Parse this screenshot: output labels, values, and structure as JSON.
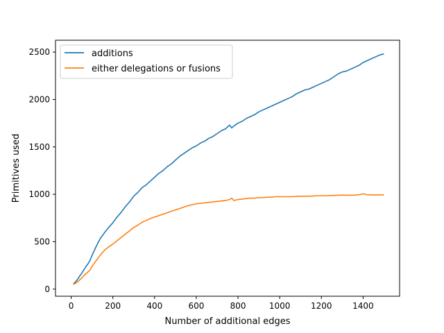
{
  "chart_data": {
    "type": "line",
    "title": "",
    "xlabel": "Number of additional edges",
    "ylabel": "Primitives used",
    "xlim": [
      -75,
      1575
    ],
    "ylim": [
      -75,
      2625
    ],
    "xticks": [
      0,
      200,
      400,
      600,
      800,
      1000,
      1200,
      1400
    ],
    "xtick_labels": [
      "0",
      "200",
      "400",
      "600",
      "800",
      "1000",
      "1200",
      "1400"
    ],
    "yticks": [
      0,
      500,
      1000,
      1500,
      2000,
      2500
    ],
    "ytick_labels": [
      "0",
      "500",
      "1000",
      "1500",
      "2000",
      "2500"
    ],
    "grid": false,
    "legend_position": "upper-left",
    "series": [
      {
        "name": "additions",
        "color": "#1f77b4",
        "x": [
          10,
          20,
          30,
          40,
          50,
          60,
          70,
          80,
          90,
          100,
          120,
          140,
          160,
          180,
          200,
          220,
          240,
          260,
          280,
          300,
          320,
          340,
          360,
          380,
          400,
          420,
          440,
          460,
          480,
          500,
          520,
          540,
          560,
          580,
          600,
          620,
          640,
          660,
          680,
          700,
          720,
          740,
          760,
          770,
          780,
          800,
          820,
          840,
          860,
          880,
          900,
          920,
          940,
          960,
          980,
          1000,
          1020,
          1040,
          1060,
          1080,
          1100,
          1120,
          1140,
          1160,
          1180,
          1200,
          1220,
          1240,
          1260,
          1280,
          1300,
          1320,
          1340,
          1360,
          1380,
          1400,
          1420,
          1440,
          1460,
          1480,
          1500
        ],
        "values": [
          50,
          75,
          100,
          135,
          165,
          200,
          235,
          265,
          300,
          355,
          450,
          535,
          595,
          650,
          700,
          760,
          810,
          870,
          920,
          980,
          1020,
          1070,
          1100,
          1140,
          1180,
          1220,
          1250,
          1290,
          1320,
          1360,
          1400,
          1430,
          1460,
          1490,
          1510,
          1540,
          1560,
          1590,
          1610,
          1640,
          1670,
          1690,
          1730,
          1700,
          1720,
          1750,
          1770,
          1800,
          1820,
          1840,
          1870,
          1890,
          1910,
          1930,
          1950,
          1970,
          1990,
          2010,
          2030,
          2060,
          2080,
          2100,
          2110,
          2130,
          2150,
          2170,
          2190,
          2210,
          2240,
          2270,
          2290,
          2300,
          2320,
          2340,
          2360,
          2390,
          2410,
          2430,
          2450,
          2470,
          2480
        ]
      },
      {
        "name": "either delegations or fusions",
        "color": "#ff7f0e",
        "x": [
          10,
          20,
          30,
          40,
          50,
          60,
          70,
          80,
          90,
          100,
          120,
          140,
          160,
          180,
          200,
          220,
          240,
          260,
          280,
          300,
          320,
          340,
          360,
          380,
          400,
          420,
          440,
          460,
          480,
          500,
          520,
          540,
          560,
          580,
          600,
          620,
          640,
          660,
          680,
          700,
          720,
          740,
          760,
          770,
          780,
          800,
          820,
          840,
          860,
          880,
          900,
          920,
          940,
          960,
          980,
          1000,
          1020,
          1040,
          1060,
          1080,
          1100,
          1120,
          1140,
          1160,
          1180,
          1200,
          1220,
          1240,
          1260,
          1280,
          1300,
          1320,
          1340,
          1360,
          1380,
          1400,
          1420,
          1440,
          1460,
          1480,
          1500
        ],
        "values": [
          50,
          60,
          75,
          95,
          115,
          140,
          160,
          180,
          200,
          240,
          300,
          360,
          410,
          445,
          475,
          510,
          545,
          580,
          615,
          650,
          675,
          705,
          725,
          745,
          760,
          775,
          790,
          805,
          820,
          835,
          850,
          865,
          880,
          890,
          900,
          905,
          910,
          915,
          920,
          925,
          930,
          935,
          945,
          960,
          935,
          945,
          950,
          955,
          960,
          960,
          965,
          965,
          970,
          970,
          975,
          975,
          975,
          975,
          975,
          978,
          980,
          980,
          980,
          982,
          985,
          985,
          985,
          987,
          988,
          990,
          992,
          990,
          990,
          992,
          995,
          1005,
          995,
          995,
          993,
          995,
          995
        ]
      }
    ]
  }
}
